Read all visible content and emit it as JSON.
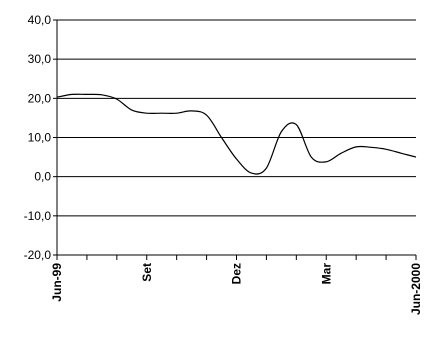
{
  "chart_data": {
    "type": "line",
    "title": "",
    "xlabel": "",
    "ylabel": "",
    "ylim": [
      -20,
      40
    ],
    "y_ticks": [
      40,
      30,
      20,
      10,
      0,
      -10,
      -20
    ],
    "y_tick_labels": [
      "40,0",
      "30,0",
      "20,0",
      "10,0",
      "0,0",
      "-10,0",
      "-20,0"
    ],
    "x_ticks": [
      "Jun-99",
      "Set",
      "Dez",
      "Mar",
      "Jun-2000"
    ],
    "x_range": [
      0,
      12
    ],
    "grid": true,
    "legend": "none",
    "series": [
      {
        "color": "#000000",
        "x": [
          0,
          0.5,
          1,
          1.5,
          2,
          2.5,
          3,
          3.5,
          4,
          4.5,
          5,
          5.5,
          6,
          6.5,
          7,
          7.5,
          8,
          8.5,
          9,
          9.5,
          10,
          10.5,
          11,
          11.5,
          12
        ],
        "y": [
          20.3,
          21.0,
          21.0,
          20.9,
          19.8,
          17.0,
          16.2,
          16.2,
          16.2,
          16.8,
          15.7,
          10.0,
          4.5,
          0.9,
          2.2,
          11.5,
          13.3,
          5.0,
          3.8,
          6.0,
          7.6,
          7.5,
          7.0,
          6.0,
          5.0
        ]
      }
    ]
  }
}
